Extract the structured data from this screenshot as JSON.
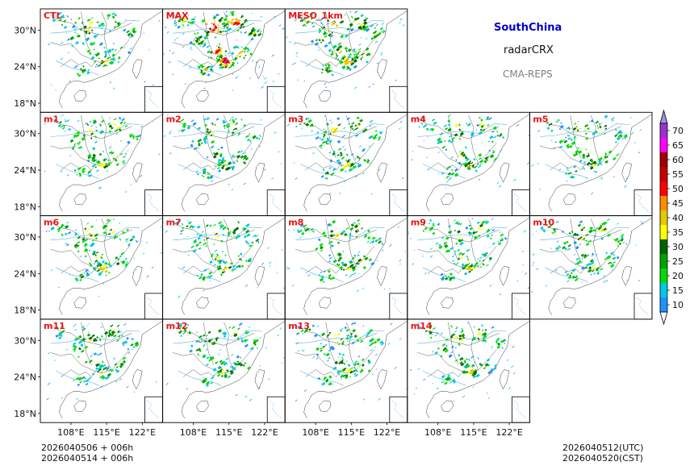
{
  "header": {
    "region": "SouthChina",
    "product": "radarCRX",
    "source": "CMA-REPS"
  },
  "footer": {
    "init_utc": "2026040506  +  006h",
    "init_cst": "2026040514  +  006h",
    "valid_utc": "2026040512(UTC)",
    "valid_cst": "2026040520(CST)"
  },
  "chart_data": {
    "type": "heatmap",
    "title": "radarCRX SouthChina CMA-REPS",
    "panels": [
      "CTL",
      "MAX",
      "MESO_1km",
      "m1",
      "m2",
      "m3",
      "m4",
      "m5",
      "m6",
      "m7",
      "m8",
      "m9",
      "m10",
      "m11",
      "m12",
      "m13",
      "m14"
    ],
    "lat_ticks": [
      "30°N",
      "24°N",
      "18°N"
    ],
    "lon_ticks": [
      "108°E",
      "115°E",
      "122°E"
    ],
    "lon_range": [
      102,
      126
    ],
    "lat_range": [
      16.5,
      33.5
    ],
    "colorbar": {
      "levels": [
        10,
        15,
        20,
        25,
        30,
        35,
        40,
        45,
        50,
        55,
        60,
        65,
        70
      ],
      "colors": [
        "#1e90ff",
        "#00c8e6",
        "#00dc00",
        "#00a000",
        "#006400",
        "#ffff00",
        "#e6c800",
        "#ff8c00",
        "#ff0000",
        "#c80000",
        "#a00000",
        "#ff00ff",
        "#9932cc"
      ],
      "under_color": "#ffffff",
      "over_color": "#a090d8"
    }
  }
}
